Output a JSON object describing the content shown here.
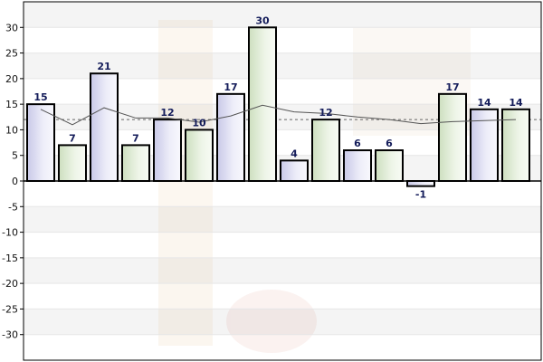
{
  "chart_data": {
    "type": "bar",
    "title": "",
    "xlabel": "",
    "ylabel": "",
    "categories": [
      "",
      "",
      "",
      "",
      "",
      "",
      "",
      "",
      "",
      "",
      "",
      "",
      "",
      "",
      "",
      ""
    ],
    "series": [
      {
        "name": "",
        "type": "bar",
        "values": [
          15,
          7,
          21,
          7,
          12,
          10,
          17,
          30,
          4,
          12,
          6,
          6,
          -1,
          17,
          14,
          14
        ],
        "data_labels": [
          "15",
          "7",
          "21",
          "7",
          "12",
          "10",
          "17",
          "30",
          "4",
          "12",
          "6",
          "6",
          "-1",
          "17",
          "14",
          "14"
        ]
      },
      {
        "name": "",
        "type": "line",
        "values": [
          14,
          11,
          14.3,
          12.3,
          12.3,
          11.5,
          12.7,
          14.8,
          13.5,
          13.2,
          12.5,
          12.0,
          11.2,
          11.6,
          11.8,
          12.0
        ]
      }
    ],
    "reference_line": {
      "value": 12,
      "style": "dashed"
    },
    "ylim": [
      -35,
      35
    ],
    "yticks": [
      30,
      25,
      20,
      15,
      10,
      5,
      0,
      -5,
      -10,
      -15,
      -20,
      -25,
      -30
    ],
    "ytick_labels": [
      "30",
      "25",
      "20",
      "15",
      "10",
      "5",
      "0",
      "-5",
      "-10",
      "-15",
      "-20",
      "-25",
      "-30"
    ],
    "grid": "horizontal alternating bands",
    "legend": "none",
    "colors": {
      "bar_fill_odd": "#dcdcf0",
      "bar_fill_even": "#dde9d2",
      "bar_stroke": "#000000",
      "data_label": "#141c5a",
      "trend_line": "#555555",
      "reference_line": "#666666",
      "band_light": "#f4f4f4",
      "band_white": "#ffffff"
    }
  }
}
